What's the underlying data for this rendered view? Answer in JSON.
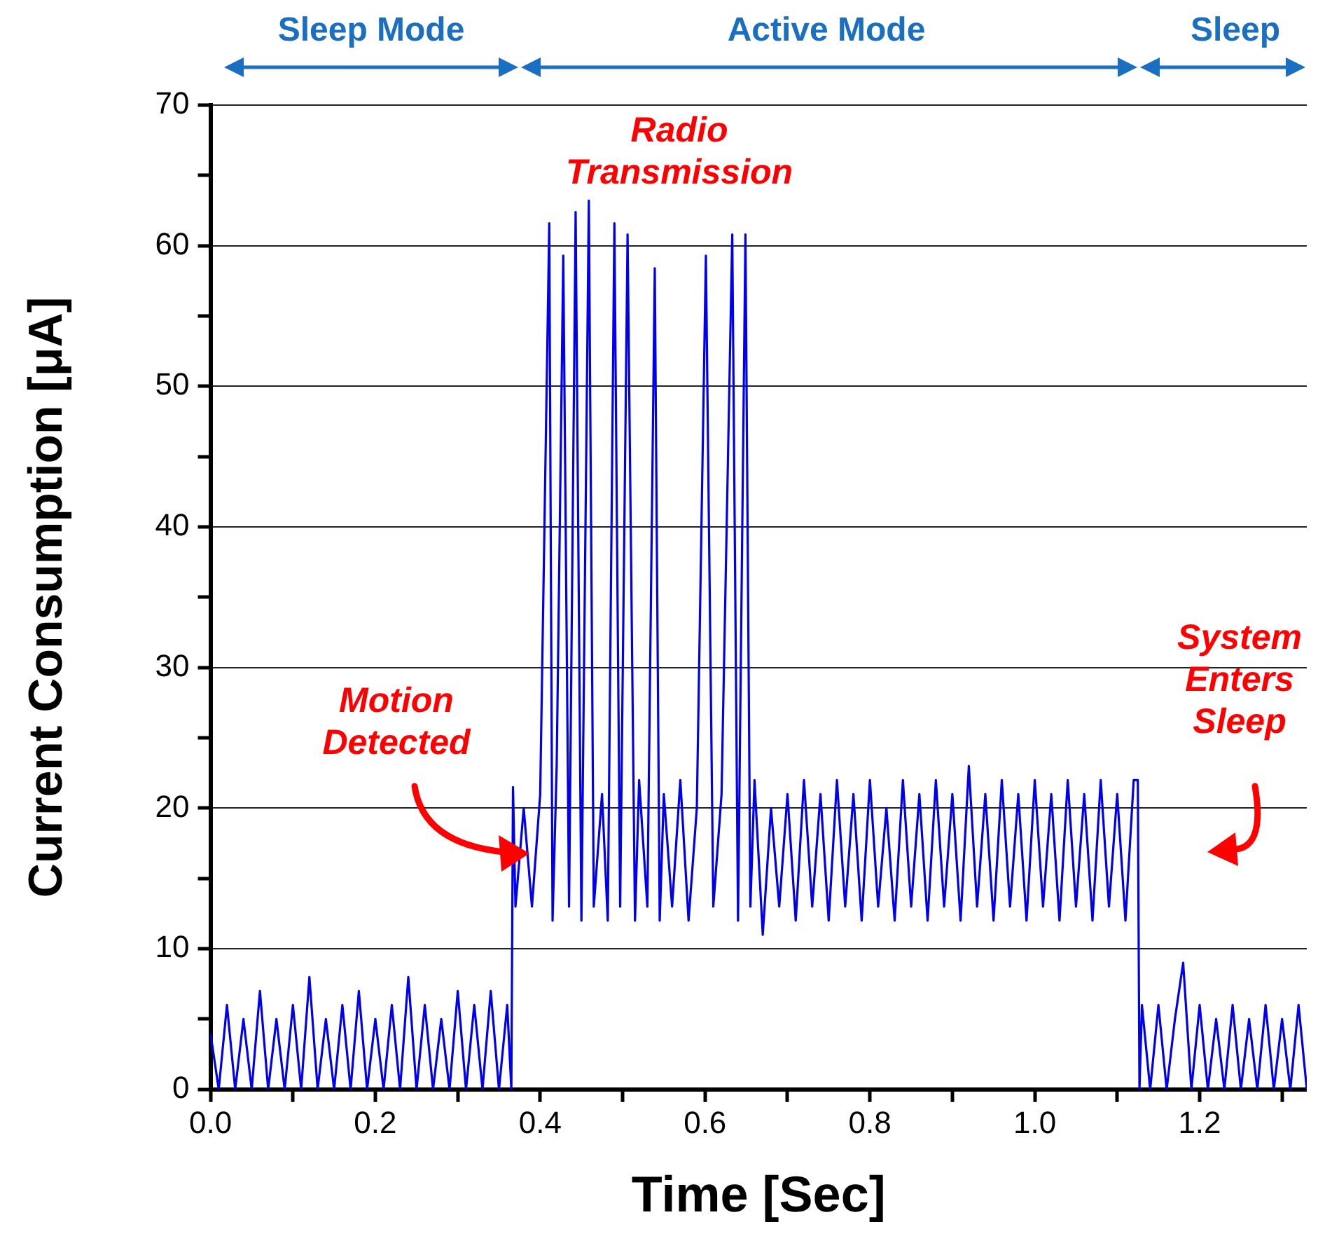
{
  "chart_data": {
    "type": "line",
    "xlabel": "Time [Sec]",
    "ylabel": "Current Consumption [μA]",
    "xlim": [
      0,
      1.33
    ],
    "ylim": [
      0,
      70
    ],
    "xticks": [
      {
        "value": 0,
        "label": "0.0"
      },
      {
        "value": 0.1,
        "label": null
      },
      0.2,
      {
        "value": 0.3,
        "label": null
      },
      0.4,
      {
        "value": 0.5,
        "label": null
      },
      0.6,
      {
        "value": 0.7,
        "label": null
      },
      0.8,
      {
        "value": 0.9,
        "label": null
      },
      {
        "value": 1,
        "label": "1.0"
      },
      {
        "value": 1.1,
        "label": null
      },
      1.2,
      {
        "value": 1.3,
        "label": null
      }
    ],
    "yticks": [
      0,
      {
        "value": 5,
        "label": null
      },
      10,
      {
        "value": 15,
        "label": null
      },
      20,
      {
        "value": 25,
        "label": null
      },
      30,
      {
        "value": 35,
        "label": null
      },
      40,
      {
        "value": 45,
        "label": null
      },
      50,
      {
        "value": 55,
        "label": null
      },
      60,
      {
        "value": 65,
        "label": null
      },
      70
    ],
    "grid": "y",
    "legend": false,
    "marker": "none",
    "line_style": "solid",
    "series": [
      {
        "color": "#0000f0",
        "x": [
          0,
          0.01,
          0.02,
          0.03,
          0.04,
          0.05,
          0.06,
          0.07,
          0.08,
          0.09,
          0.1,
          0.11,
          0.12,
          0.13,
          0.14,
          0.15,
          0.16,
          0.17,
          0.18,
          0.19,
          0.2,
          0.21,
          0.22,
          0.23,
          0.24,
          0.25,
          0.26,
          0.27,
          0.28,
          0.29,
          0.3,
          0.31,
          0.32,
          0.33,
          0.34,
          0.35,
          0.36,
          0.365,
          0.367,
          0.37,
          0.38,
          0.39,
          0.4,
          0.411,
          0.415,
          0.42,
          0.428,
          0.435,
          0.443,
          0.45,
          0.459,
          0.465,
          0.475,
          0.482,
          0.49,
          0.497,
          0.506,
          0.515,
          0.52,
          0.53,
          0.539,
          0.545,
          0.55,
          0.56,
          0.57,
          0.58,
          0.59,
          0.601,
          0.61,
          0.62,
          0.633,
          0.64,
          0.649,
          0.655,
          0.66,
          0.67,
          0.68,
          0.69,
          0.7,
          0.71,
          0.72,
          0.73,
          0.74,
          0.75,
          0.76,
          0.77,
          0.78,
          0.79,
          0.8,
          0.81,
          0.82,
          0.83,
          0.84,
          0.85,
          0.86,
          0.87,
          0.88,
          0.89,
          0.9,
          0.91,
          0.92,
          0.93,
          0.94,
          0.95,
          0.96,
          0.97,
          0.98,
          0.99,
          1,
          1.01,
          1.02,
          1.03,
          1.04,
          1.05,
          1.06,
          1.07,
          1.08,
          1.09,
          1.1,
          1.11,
          1.12,
          1.125,
          1.127,
          1.13,
          1.14,
          1.15,
          1.16,
          1.17,
          1.18,
          1.19,
          1.2,
          1.21,
          1.22,
          1.23,
          1.24,
          1.25,
          1.26,
          1.27,
          1.28,
          1.29,
          1.3,
          1.31,
          1.32,
          1.33
        ],
        "values": [
          4,
          0,
          6,
          0,
          5,
          0,
          7,
          0,
          5,
          0,
          6,
          0,
          8,
          0,
          5,
          0,
          6,
          0,
          7,
          0,
          5,
          0,
          6,
          0,
          8,
          0,
          6,
          0,
          5,
          0,
          7,
          0,
          6,
          0,
          7,
          0,
          6,
          0,
          21.5,
          13,
          20,
          13,
          21,
          61.6,
          12,
          23,
          59.3,
          13,
          62.4,
          12,
          63.2,
          13,
          21,
          12,
          61.6,
          13,
          60.8,
          12,
          22,
          13,
          58.4,
          12,
          21,
          13,
          22,
          12,
          20,
          59.3,
          13,
          21,
          60.8,
          12,
          60.8,
          13,
          22,
          11,
          20,
          13,
          21,
          12,
          22,
          13,
          21,
          12,
          22,
          13,
          21,
          12,
          22,
          13,
          20,
          12,
          22,
          13,
          21,
          12,
          22,
          13,
          21,
          12,
          23,
          13,
          21,
          12,
          22,
          13,
          21,
          12,
          22,
          13,
          21,
          12,
          22,
          13,
          21,
          12,
          22,
          13,
          21,
          12,
          22,
          22,
          0,
          6,
          0,
          6,
          0,
          5,
          9,
          0,
          6,
          0,
          5,
          0,
          6,
          0,
          5,
          0,
          6,
          0,
          5,
          0,
          6,
          0
        ]
      }
    ],
    "annotations": [
      "Sleep Mode",
      "Active Mode",
      "Sleep",
      "Radio Transmission",
      "Motion Detected",
      "System Enters Sleep"
    ]
  }
}
